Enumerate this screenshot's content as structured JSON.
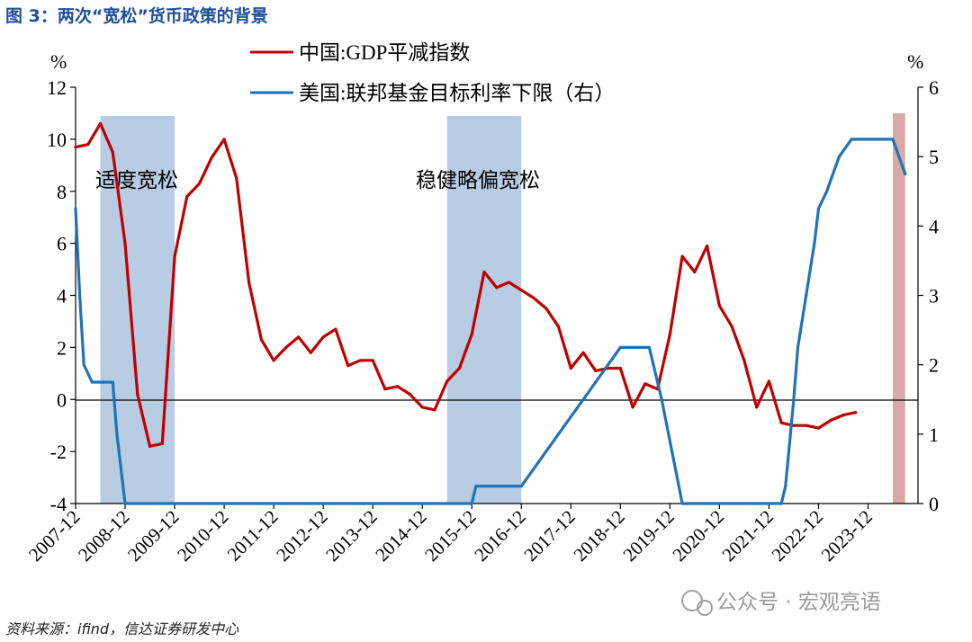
{
  "figure": {
    "title": "图 3：两次“宽松”货币政策的背景",
    "source": "资料来源：ifind，信达证券研发中心",
    "watermark": "公众号 · 宏观亮语"
  },
  "chart_data": {
    "type": "line",
    "y_left": {
      "unit": "%",
      "range": [
        -4,
        12
      ],
      "ticks": [
        "-4",
        "-2",
        "0",
        "2",
        "4",
        "6",
        "8",
        "10",
        "12"
      ]
    },
    "y_right": {
      "unit": "%",
      "range": [
        0,
        6
      ],
      "ticks": [
        "0",
        "1",
        "2",
        "3",
        "4",
        "5",
        "6"
      ]
    },
    "x_tick_labels": [
      "2007-12",
      "2008-12",
      "2009-12",
      "2010-12",
      "2011-12",
      "2012-12",
      "2013-12",
      "2014-12",
      "2015-12",
      "2016-12",
      "2017-12",
      "2018-12",
      "2019-12",
      "2020-12",
      "2021-12",
      "2022-12",
      "2023-12"
    ],
    "x_range": [
      "2007-12",
      "2024-06"
    ],
    "grid": false,
    "legend_position": "top-center",
    "series": [
      {
        "name": "中国:GDP平减指数",
        "axis": "left",
        "color": "#c00000",
        "points": [
          [
            "2007-12",
            9.7
          ],
          [
            "2008-03",
            9.8
          ],
          [
            "2008-06",
            10.6
          ],
          [
            "2008-09",
            9.5
          ],
          [
            "2008-12",
            6.0
          ],
          [
            "2009-03",
            0.2
          ],
          [
            "2009-06",
            -1.8
          ],
          [
            "2009-09",
            -1.7
          ],
          [
            "2009-12",
            5.5
          ],
          [
            "2010-03",
            7.8
          ],
          [
            "2010-06",
            8.3
          ],
          [
            "2010-09",
            9.3
          ],
          [
            "2010-12",
            10.0
          ],
          [
            "2011-03",
            8.5
          ],
          [
            "2011-06",
            4.5
          ],
          [
            "2011-09",
            2.3
          ],
          [
            "2011-12",
            1.5
          ],
          [
            "2012-03",
            2.0
          ],
          [
            "2012-06",
            2.4
          ],
          [
            "2012-09",
            1.8
          ],
          [
            "2012-12",
            2.4
          ],
          [
            "2013-03",
            2.7
          ],
          [
            "2013-06",
            1.3
          ],
          [
            "2013-09",
            1.5
          ],
          [
            "2013-12",
            1.5
          ],
          [
            "2014-03",
            0.4
          ],
          [
            "2014-06",
            0.5
          ],
          [
            "2014-09",
            0.2
          ],
          [
            "2014-12",
            -0.3
          ],
          [
            "2015-03",
            -0.4
          ],
          [
            "2015-06",
            0.7
          ],
          [
            "2015-09",
            1.2
          ],
          [
            "2015-12",
            2.5
          ],
          [
            "2016-03",
            4.9
          ],
          [
            "2016-06",
            4.3
          ],
          [
            "2016-09",
            4.5
          ],
          [
            "2016-12",
            4.2
          ],
          [
            "2017-03",
            3.9
          ],
          [
            "2017-06",
            3.5
          ],
          [
            "2017-09",
            2.8
          ],
          [
            "2017-12",
            1.2
          ],
          [
            "2018-03",
            1.8
          ],
          [
            "2018-06",
            1.1
          ],
          [
            "2018-09",
            1.2
          ],
          [
            "2018-12",
            1.2
          ],
          [
            "2019-03",
            -0.3
          ],
          [
            "2019-06",
            0.6
          ],
          [
            "2019-09",
            0.4
          ],
          [
            "2019-12",
            2.5
          ],
          [
            "2020-03",
            5.5
          ],
          [
            "2020-06",
            4.9
          ],
          [
            "2020-09",
            5.9
          ],
          [
            "2020-12",
            3.6
          ],
          [
            "2021-03",
            2.8
          ],
          [
            "2021-06",
            1.5
          ],
          [
            "2021-09",
            -0.3
          ],
          [
            "2021-12",
            0.7
          ],
          [
            "2022-03",
            -0.9
          ],
          [
            "2022-06",
            -1.0
          ],
          [
            "2022-09",
            -1.0
          ],
          [
            "2022-12",
            -1.1
          ],
          [
            "2023-03",
            -0.8
          ],
          [
            "2023-06",
            -0.6
          ],
          [
            "2023-09",
            -0.5
          ]
        ]
      },
      {
        "name": "美国:联邦基金目标利率下限（右）",
        "axis": "right",
        "color": "#1f73b7",
        "points": [
          [
            "2007-12",
            4.25
          ],
          [
            "2008-01",
            3.0
          ],
          [
            "2008-02",
            2.0
          ],
          [
            "2008-04",
            1.75
          ],
          [
            "2008-09",
            1.75
          ],
          [
            "2008-10",
            1.0
          ],
          [
            "2008-12",
            0.0
          ],
          [
            "2015-12",
            0.0
          ],
          [
            "2016-01",
            0.25
          ],
          [
            "2016-12",
            0.25
          ],
          [
            "2017-03",
            0.5
          ],
          [
            "2017-06",
            0.75
          ],
          [
            "2017-09",
            1.0
          ],
          [
            "2017-12",
            1.25
          ],
          [
            "2018-03",
            1.5
          ],
          [
            "2018-06",
            1.75
          ],
          [
            "2018-09",
            2.0
          ],
          [
            "2018-12",
            2.25
          ],
          [
            "2019-07",
            2.25
          ],
          [
            "2019-09",
            1.75
          ],
          [
            "2019-10",
            1.5
          ],
          [
            "2020-03",
            0.0
          ],
          [
            "2022-03",
            0.0
          ],
          [
            "2022-04",
            0.25
          ],
          [
            "2022-06",
            1.5
          ],
          [
            "2022-07",
            2.25
          ],
          [
            "2022-09",
            3.0
          ],
          [
            "2022-11",
            3.75
          ],
          [
            "2022-12",
            4.25
          ],
          [
            "2023-02",
            4.5
          ],
          [
            "2023-05",
            5.0
          ],
          [
            "2023-08",
            5.25
          ],
          [
            "2024-06",
            5.25
          ],
          [
            "2024-09",
            4.75
          ]
        ]
      }
    ],
    "shaded_periods": [
      {
        "start": "2008-06",
        "end": "2009-12",
        "color": "#b8cce4",
        "label": "适度宽松"
      },
      {
        "start": "2015-06",
        "end": "2016-12",
        "color": "#b8cce4",
        "label": "稳健略偏宽松"
      },
      {
        "start": "2024-06",
        "end": "2024-09",
        "color": "#d8a9a6",
        "label": ""
      }
    ]
  }
}
